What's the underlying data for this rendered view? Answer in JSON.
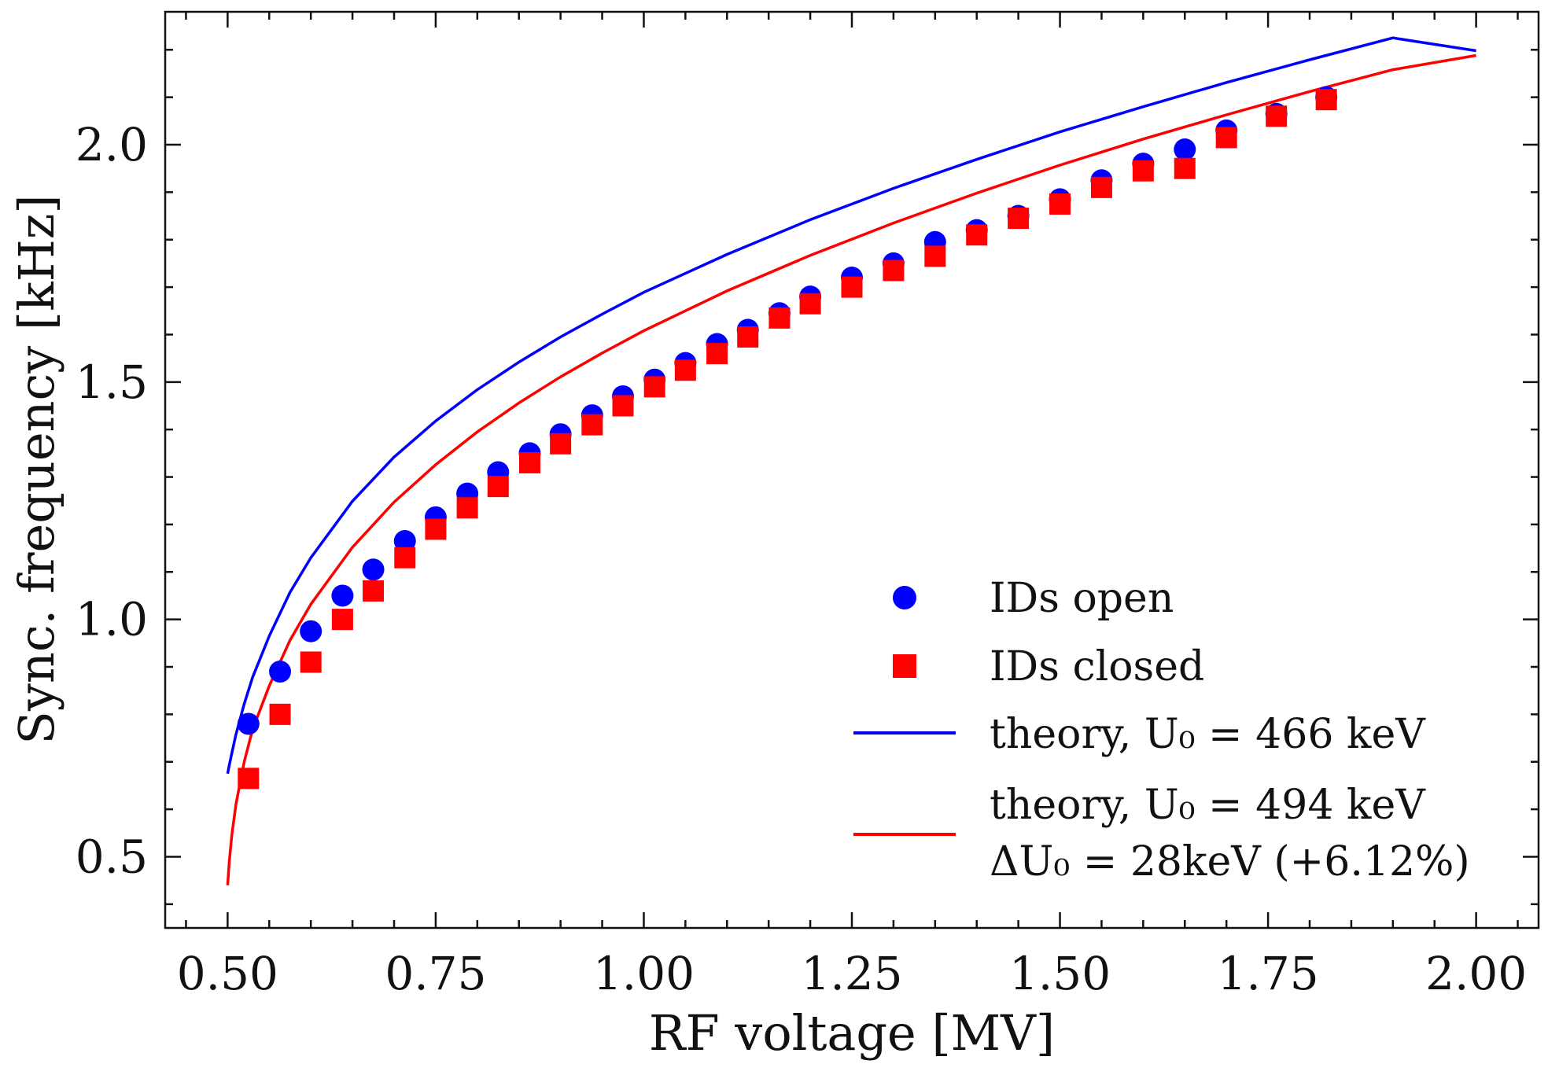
{
  "chart_data": {
    "type": "scatter",
    "xlabel": "RF voltage [MV]",
    "ylabel": "Sync. frequency [kHz]",
    "xlim": [
      0.425,
      2.075
    ],
    "ylim": [
      0.35,
      2.28
    ],
    "xticks": [
      0.5,
      0.75,
      1.0,
      1.25,
      1.5,
      1.75,
      2.0
    ],
    "xtick_labels": [
      "0.50",
      "0.75",
      "1.00",
      "1.25",
      "1.50",
      "1.75",
      "2.00"
    ],
    "yticks": [
      0.5,
      1.0,
      1.5,
      2.0
    ],
    "ytick_labels": [
      "0.5",
      "1.0",
      "1.5",
      "2.0"
    ],
    "grid": false,
    "legend_position": "bottom-right",
    "series": [
      {
        "name": "IDs open",
        "kind": "scatter",
        "marker": "circle",
        "color": "#0000ff",
        "x": [
          0.525,
          0.563,
          0.6,
          0.638,
          0.675,
          0.713,
          0.75,
          0.788,
          0.825,
          0.863,
          0.9,
          0.938,
          0.975,
          1.013,
          1.05,
          1.088,
          1.125,
          1.163,
          1.2,
          1.25,
          1.3,
          1.35,
          1.4,
          1.45,
          1.5,
          1.55,
          1.6,
          1.65,
          1.7,
          1.76,
          1.82
        ],
        "y": [
          0.78,
          0.89,
          0.975,
          1.05,
          1.105,
          1.165,
          1.215,
          1.265,
          1.31,
          1.35,
          1.39,
          1.43,
          1.47,
          1.505,
          1.54,
          1.58,
          1.61,
          1.645,
          1.68,
          1.72,
          1.75,
          1.795,
          1.82,
          1.85,
          1.885,
          1.925,
          1.96,
          1.99,
          2.03,
          2.065,
          2.1
        ]
      },
      {
        "name": "IDs closed",
        "kind": "scatter",
        "marker": "square",
        "color": "#ff0000",
        "x": [
          0.525,
          0.563,
          0.6,
          0.638,
          0.675,
          0.713,
          0.75,
          0.788,
          0.825,
          0.863,
          0.9,
          0.938,
          0.975,
          1.013,
          1.05,
          1.088,
          1.125,
          1.163,
          1.2,
          1.25,
          1.3,
          1.35,
          1.4,
          1.45,
          1.5,
          1.55,
          1.6,
          1.65,
          1.7,
          1.76,
          1.82
        ],
        "y": [
          0.665,
          0.8,
          0.91,
          1.0,
          1.06,
          1.13,
          1.19,
          1.235,
          1.28,
          1.33,
          1.37,
          1.41,
          1.45,
          1.49,
          1.525,
          1.56,
          1.595,
          1.635,
          1.665,
          1.7,
          1.735,
          1.765,
          1.81,
          1.845,
          1.875,
          1.91,
          1.945,
          1.95,
          2.015,
          2.06,
          2.095
        ]
      },
      {
        "name": "theory, U₀ = 466 keV",
        "kind": "line",
        "color": "#0000ff",
        "x": [
          0.5,
          0.502,
          0.505,
          0.51,
          0.52,
          0.53,
          0.55,
          0.575,
          0.6,
          0.65,
          0.7,
          0.75,
          0.8,
          0.85,
          0.9,
          0.95,
          1.0,
          1.1,
          1.2,
          1.3,
          1.4,
          1.5,
          1.6,
          1.7,
          1.8,
          1.9,
          2.0
        ],
        "y": [
          0.675,
          0.693,
          0.718,
          0.757,
          0.822,
          0.878,
          0.965,
          1.057,
          1.13,
          1.249,
          1.342,
          1.418,
          1.484,
          1.542,
          1.595,
          1.643,
          1.689,
          1.769,
          1.842,
          1.908,
          1.969,
          2.027,
          2.08,
          2.131,
          2.179,
          2.225,
          2.198
        ]
      },
      {
        "name": "theory, U₀ = 494 keV",
        "kind": "line",
        "color": "#ff0000",
        "x": [
          0.5,
          0.502,
          0.505,
          0.51,
          0.52,
          0.53,
          0.55,
          0.575,
          0.6,
          0.65,
          0.7,
          0.75,
          0.8,
          0.85,
          0.9,
          0.95,
          1.0,
          1.1,
          1.2,
          1.3,
          1.4,
          1.5,
          1.6,
          1.7,
          1.8,
          1.9,
          2.0
        ],
        "y": [
          0.44,
          0.49,
          0.545,
          0.61,
          0.7,
          0.768,
          0.86,
          0.956,
          1.032,
          1.152,
          1.247,
          1.326,
          1.395,
          1.456,
          1.511,
          1.561,
          1.608,
          1.692,
          1.767,
          1.835,
          1.898,
          1.957,
          2.012,
          2.063,
          2.112,
          2.158,
          2.188
        ]
      }
    ],
    "legend": {
      "open_label": "IDs open",
      "closed_label": "IDs closed",
      "theory1_label": "theory, U₀ = 466 keV",
      "theory2_line1": "theory, U₀ = 494 keV",
      "theory2_line2": "ΔU₀ = 28keV (+6.12%)"
    }
  }
}
